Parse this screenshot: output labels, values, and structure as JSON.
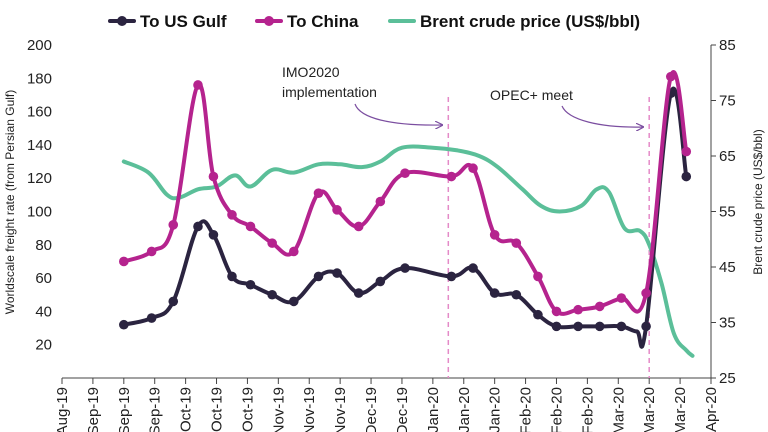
{
  "chart_data": {
    "type": "line",
    "title": "",
    "legend": {
      "placement": "top",
      "entries": [
        {
          "name": "To US Gulf",
          "color": "#2b2440",
          "marker": true
        },
        {
          "name": "To China",
          "color": "#b5238e",
          "marker": true
        },
        {
          "name": "Brent crude price (US$/bbl)",
          "color": "#5bbf99",
          "marker": false
        }
      ]
    },
    "ylabel_left": "Worldscale freight rate (from Persian Gulf)",
    "ylabel_right": "Brent crude price (US$/bbl)",
    "ylim_left": [
      0,
      200
    ],
    "yticks_left": [
      "20",
      "40",
      "60",
      "80",
      "100",
      "120",
      "140",
      "160",
      "180",
      "200"
    ],
    "ylim_right": [
      25,
      85
    ],
    "yticks_right": [
      "25",
      "35",
      "45",
      "55",
      "65",
      "75",
      "85"
    ],
    "x_range": [
      0,
      21
    ],
    "x_ticks": [
      "Aug-19",
      "Sep-19",
      "Sep-19",
      "Sep-19",
      "Oct-19",
      "Oct-19",
      "Oct-19",
      "Nov-19",
      "Nov-19",
      "Nov-19",
      "Dec-19",
      "Dec-19",
      "Jan-20",
      "Jan-20",
      "Jan-20",
      "Feb-20",
      "Feb-20",
      "Feb-20",
      "Mar-20",
      "Mar-20",
      "Mar-20",
      "Apr-20"
    ],
    "series": [
      {
        "name": "To US Gulf",
        "color": "#2b2440",
        "axis": "left",
        "markers": true,
        "points": [
          {
            "x": 2.0,
            "y": 32,
            "m": true
          },
          {
            "x": 2.9,
            "y": 36,
            "m": true
          },
          {
            "x": 3.6,
            "y": 46,
            "m": true
          },
          {
            "x": 4.4,
            "y": 91,
            "m": true
          },
          {
            "x": 4.9,
            "y": 86,
            "m": true
          },
          {
            "x": 5.5,
            "y": 61,
            "m": true
          },
          {
            "x": 6.1,
            "y": 56,
            "m": true
          },
          {
            "x": 6.8,
            "y": 50,
            "m": true
          },
          {
            "x": 7.5,
            "y": 46,
            "m": true
          },
          {
            "x": 8.3,
            "y": 61,
            "m": true
          },
          {
            "x": 8.9,
            "y": 63,
            "m": true
          },
          {
            "x": 9.6,
            "y": 51,
            "m": true
          },
          {
            "x": 10.3,
            "y": 58,
            "m": true
          },
          {
            "x": 11.1,
            "y": 66,
            "m": true
          },
          {
            "x": 12.6,
            "y": 61,
            "m": true
          },
          {
            "x": 13.3,
            "y": 66,
            "m": true
          },
          {
            "x": 14.0,
            "y": 51,
            "m": true
          },
          {
            "x": 14.7,
            "y": 50,
            "m": true
          },
          {
            "x": 15.4,
            "y": 38,
            "m": true
          },
          {
            "x": 16.0,
            "y": 31,
            "m": true
          },
          {
            "x": 16.7,
            "y": 31,
            "m": true
          },
          {
            "x": 17.4,
            "y": 31,
            "m": true
          },
          {
            "x": 18.1,
            "y": 31,
            "m": true
          },
          {
            "x": 18.6,
            "y": 28,
            "m": false
          },
          {
            "x": 18.9,
            "y": 31,
            "m": true
          },
          {
            "x": 19.7,
            "y": 171,
            "m": true
          },
          {
            "x": 20.2,
            "y": 121,
            "m": true
          }
        ]
      },
      {
        "name": "To China",
        "color": "#b5238e",
        "axis": "left",
        "markers": true,
        "points": [
          {
            "x": 2.0,
            "y": 70,
            "m": true
          },
          {
            "x": 2.9,
            "y": 76,
            "m": true
          },
          {
            "x": 3.6,
            "y": 92,
            "m": true
          },
          {
            "x": 4.4,
            "y": 176,
            "m": true
          },
          {
            "x": 4.9,
            "y": 121,
            "m": true
          },
          {
            "x": 5.5,
            "y": 98,
            "m": true
          },
          {
            "x": 6.1,
            "y": 91,
            "m": true
          },
          {
            "x": 6.8,
            "y": 81,
            "m": true
          },
          {
            "x": 7.5,
            "y": 76,
            "m": true
          },
          {
            "x": 8.3,
            "y": 111,
            "m": true
          },
          {
            "x": 8.9,
            "y": 101,
            "m": true
          },
          {
            "x": 9.6,
            "y": 91,
            "m": true
          },
          {
            "x": 10.3,
            "y": 106,
            "m": true
          },
          {
            "x": 11.1,
            "y": 123,
            "m": true
          },
          {
            "x": 12.6,
            "y": 121,
            "m": true
          },
          {
            "x": 13.3,
            "y": 126,
            "m": true
          },
          {
            "x": 14.0,
            "y": 86,
            "m": true
          },
          {
            "x": 14.7,
            "y": 81,
            "m": true
          },
          {
            "x": 15.4,
            "y": 61,
            "m": true
          },
          {
            "x": 16.0,
            "y": 40,
            "m": true
          },
          {
            "x": 16.7,
            "y": 41,
            "m": true
          },
          {
            "x": 17.4,
            "y": 43,
            "m": true
          },
          {
            "x": 18.1,
            "y": 48,
            "m": true
          },
          {
            "x": 18.9,
            "y": 51,
            "m": true
          },
          {
            "x": 19.7,
            "y": 181,
            "m": true
          },
          {
            "x": 20.2,
            "y": 136,
            "m": true
          }
        ]
      },
      {
        "name": "Brent crude price (US$/bbl)",
        "color": "#5bbf99",
        "axis": "right",
        "markers": false,
        "points": [
          {
            "x": 2.0,
            "y": 64.0
          },
          {
            "x": 2.8,
            "y": 62.0
          },
          {
            "x": 3.4,
            "y": 58.0
          },
          {
            "x": 3.8,
            "y": 57.5
          },
          {
            "x": 4.4,
            "y": 59.0
          },
          {
            "x": 5.0,
            "y": 59.5
          },
          {
            "x": 5.6,
            "y": 61.5
          },
          {
            "x": 6.1,
            "y": 59.5
          },
          {
            "x": 6.8,
            "y": 62.5
          },
          {
            "x": 7.5,
            "y": 62.0
          },
          {
            "x": 8.3,
            "y": 63.5
          },
          {
            "x": 9.0,
            "y": 63.5
          },
          {
            "x": 9.7,
            "y": 63.0
          },
          {
            "x": 10.3,
            "y": 64.0
          },
          {
            "x": 11.0,
            "y": 66.5
          },
          {
            "x": 12.0,
            "y": 66.5
          },
          {
            "x": 12.8,
            "y": 66.0
          },
          {
            "x": 13.5,
            "y": 65.0
          },
          {
            "x": 14.1,
            "y": 63.0
          },
          {
            "x": 14.9,
            "y": 59.0
          },
          {
            "x": 15.5,
            "y": 56.0
          },
          {
            "x": 16.1,
            "y": 55.0
          },
          {
            "x": 16.8,
            "y": 56.0
          },
          {
            "x": 17.3,
            "y": 59.0
          },
          {
            "x": 17.7,
            "y": 58.5
          },
          {
            "x": 18.2,
            "y": 52.0
          },
          {
            "x": 18.7,
            "y": 51.5
          },
          {
            "x": 19.0,
            "y": 49.0
          },
          {
            "x": 19.4,
            "y": 42.0
          },
          {
            "x": 19.8,
            "y": 33.0
          },
          {
            "x": 20.2,
            "y": 30.0
          },
          {
            "x": 20.4,
            "y": 29.0
          }
        ]
      }
    ],
    "reference_lines": [
      {
        "x": 12.5,
        "color": "#e48ac8",
        "style": "dashed"
      },
      {
        "x": 19.0,
        "color": "#e48ac8",
        "style": "dashed"
      }
    ],
    "annotations": [
      {
        "lines": [
          "IMO2020",
          "implementation"
        ],
        "arrow_to_x": 12.3
      },
      {
        "lines": [
          "OPEC+ meet"
        ],
        "arrow_to_x": 18.8
      }
    ]
  }
}
